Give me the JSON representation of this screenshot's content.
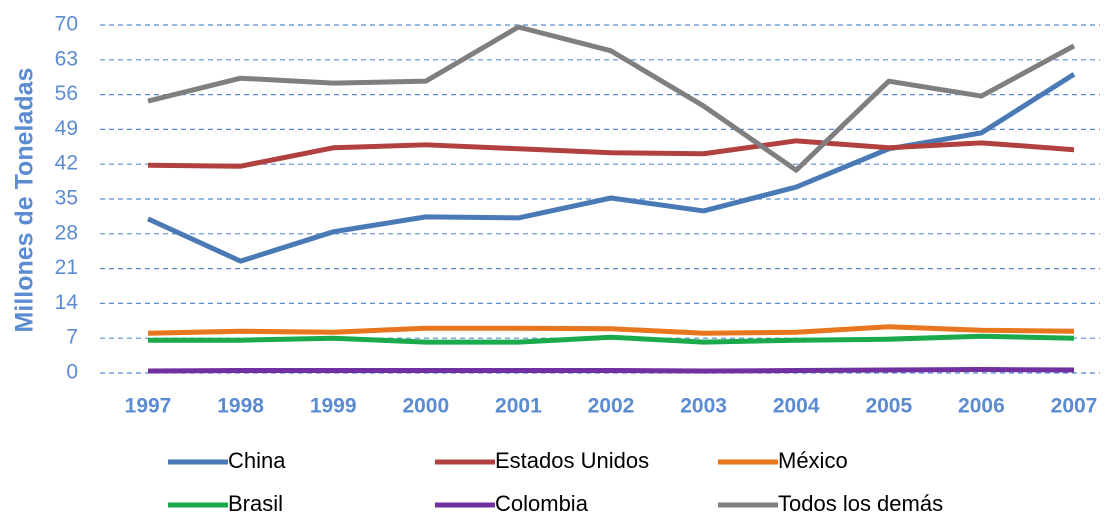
{
  "chart_data": {
    "type": "line",
    "y_axis_label": "Millones de Toneladas",
    "categories": [
      "1997",
      "1998",
      "1999",
      "2000",
      "2001",
      "2002",
      "2003",
      "2004",
      "2005",
      "2006",
      "2007"
    ],
    "series": [
      {
        "name": "China",
        "color": "#4a7ab5",
        "values": [
          31.0,
          22.5,
          28.4,
          31.4,
          31.2,
          35.2,
          32.6,
          37.4,
          45.1,
          48.3,
          60.1
        ]
      },
      {
        "name": "Estados Unidos",
        "color": "#b0413e",
        "values": [
          41.8,
          41.6,
          45.3,
          45.9,
          45.1,
          44.3,
          44.1,
          46.7,
          45.3,
          46.3,
          44.9
        ]
      },
      {
        "name": "México",
        "color": "#e8761e",
        "values": [
          8.0,
          8.4,
          8.2,
          9.0,
          9.0,
          8.9,
          8.0,
          8.2,
          9.3,
          8.6,
          8.4
        ]
      },
      {
        "name": "Brasil",
        "color": "#1aa94b",
        "values": [
          6.6,
          6.6,
          7.0,
          6.2,
          6.2,
          7.2,
          6.2,
          6.6,
          6.8,
          7.4,
          7.0
        ]
      },
      {
        "name": "Colombia",
        "color": "#7030a0",
        "values": [
          0.4,
          0.5,
          0.5,
          0.5,
          0.5,
          0.5,
          0.4,
          0.5,
          0.6,
          0.7,
          0.6
        ]
      },
      {
        "name": "Todos los demás",
        "color": "#7f7f7f",
        "values": [
          54.7,
          59.3,
          58.3,
          58.7,
          69.6,
          64.8,
          53.7,
          40.8,
          58.7,
          55.7,
          65.8
        ]
      }
    ],
    "ylim": [
      0,
      70
    ],
    "yticks": [
      0,
      7,
      14,
      21,
      28,
      35,
      42,
      49,
      56,
      63,
      70
    ],
    "grid": true,
    "legend": "bottom"
  }
}
